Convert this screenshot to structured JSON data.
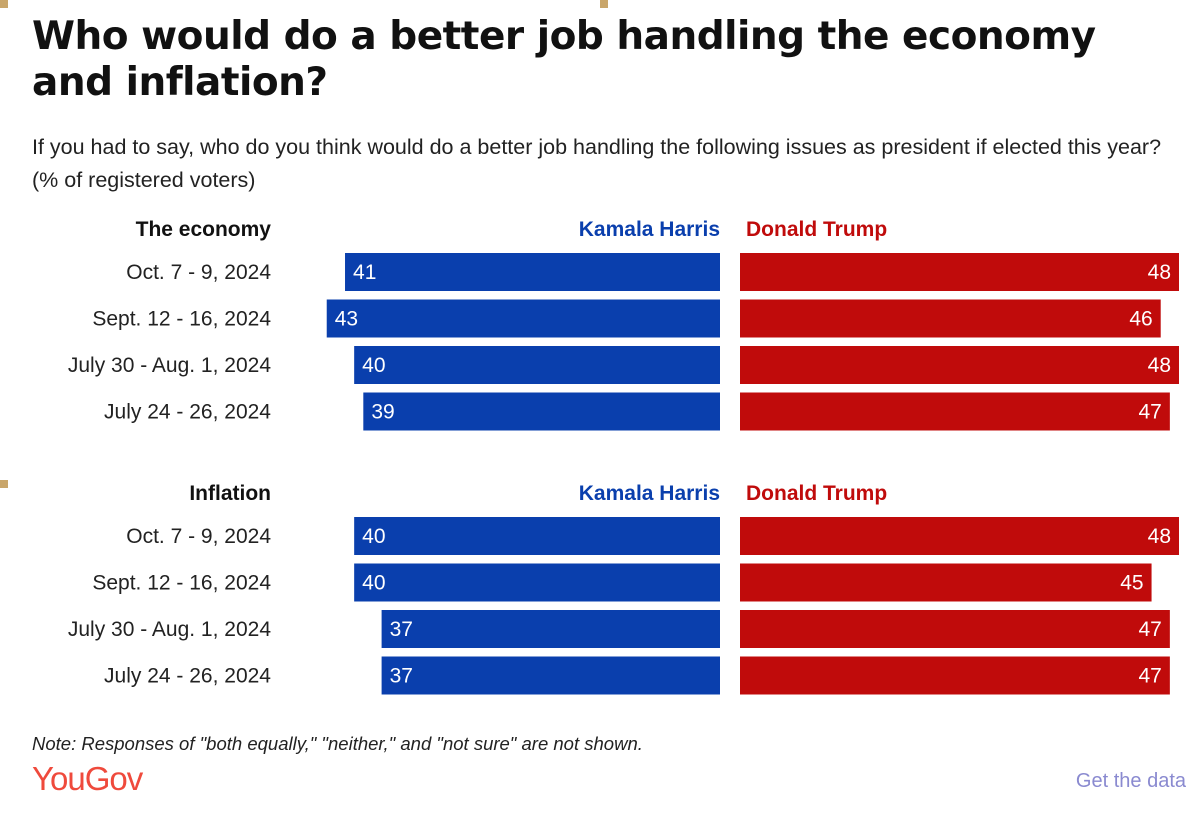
{
  "title": "Who would do a better job handling the economy and inflation?",
  "subtitle": "If you had to say, who do you think would do a better job handling the following issues as president if elected this year? (% of registered voters)",
  "note": "Note: Responses of \"both equally,\" \"neither,\" and \"not sure\" are not shown.",
  "logo_text": "YouGov",
  "get_data_label": "Get the data",
  "colors": {
    "harris": "#0a3fad",
    "trump": "#c00b0b",
    "logo": "#ef4a3c",
    "link": "#8a8ad0"
  },
  "chart_data": [
    {
      "type": "bar",
      "title": "The economy",
      "categories": [
        "Oct. 7 - 9, 2024",
        "Sept. 12 - 16, 2024",
        "July 30 - Aug. 1, 2024",
        "July 24 - 26, 2024"
      ],
      "series": [
        {
          "name": "Kamala Harris",
          "values": [
            41,
            43,
            40,
            39
          ]
        },
        {
          "name": "Donald Trump",
          "values": [
            48,
            46,
            48,
            47
          ]
        }
      ],
      "xlim": [
        0,
        48
      ]
    },
    {
      "type": "bar",
      "title": "Inflation",
      "categories": [
        "Oct. 7 - 9, 2024",
        "Sept. 12 - 16, 2024",
        "July 30 - Aug. 1, 2024",
        "July 24 - 26, 2024"
      ],
      "series": [
        {
          "name": "Kamala Harris",
          "values": [
            40,
            40,
            37,
            37
          ]
        },
        {
          "name": "Donald Trump",
          "values": [
            48,
            45,
            47,
            47
          ]
        }
      ],
      "xlim": [
        0,
        48
      ]
    }
  ]
}
